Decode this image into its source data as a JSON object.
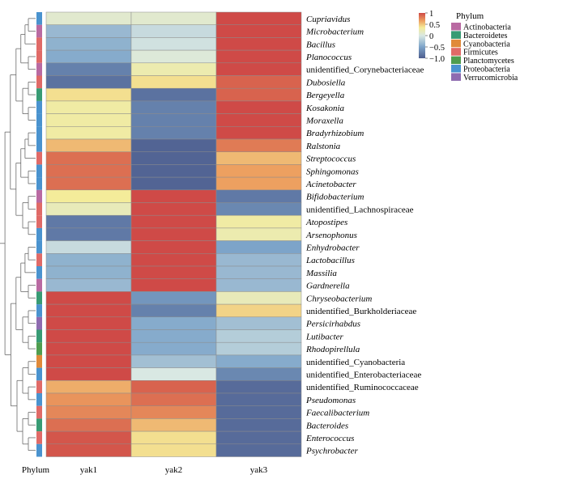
{
  "chart_data": {
    "type": "heatmap",
    "columns": [
      "yak1",
      "yak2",
      "yak3"
    ],
    "col_side_label": "Phylum",
    "rows": [
      {
        "taxon": "Cupriavidus",
        "italic": true,
        "phylum": "Proteobacteria",
        "values": [
          0.1,
          0.1,
          1.0
        ]
      },
      {
        "taxon": "Microbacterium",
        "italic": true,
        "phylum": "Actinobacteria",
        "values": [
          -0.35,
          -0.1,
          1.0
        ]
      },
      {
        "taxon": "Bacillus",
        "italic": true,
        "phylum": "Firmicutes",
        "values": [
          -0.4,
          -0.05,
          1.0
        ]
      },
      {
        "taxon": "Planococcus",
        "italic": true,
        "phylum": "Firmicutes",
        "values": [
          -0.45,
          0.05,
          1.0
        ]
      },
      {
        "taxon": "unidentified_Corynebacteriaceae",
        "italic": false,
        "phylum": "Actinobacteria",
        "values": [
          -0.75,
          0.25,
          1.0
        ]
      },
      {
        "taxon": "Dubosiella",
        "italic": true,
        "phylum": "Firmicutes",
        "values": [
          -0.85,
          0.4,
          0.9
        ]
      },
      {
        "taxon": "Bergeyella",
        "italic": true,
        "phylum": "Bacteroidetes",
        "values": [
          0.4,
          -0.85,
          0.9
        ]
      },
      {
        "taxon": "Kosakonia",
        "italic": true,
        "phylum": "Proteobacteria",
        "values": [
          0.3,
          -0.75,
          1.0
        ]
      },
      {
        "taxon": "Moraxella",
        "italic": true,
        "phylum": "Proteobacteria",
        "values": [
          0.3,
          -0.75,
          1.0
        ]
      },
      {
        "taxon": "Bradyrhizobium",
        "italic": true,
        "phylum": "Proteobacteria",
        "values": [
          0.3,
          -0.75,
          1.0
        ]
      },
      {
        "taxon": "Ralstonia",
        "italic": true,
        "phylum": "Proteobacteria",
        "values": [
          0.55,
          -0.95,
          0.8
        ]
      },
      {
        "taxon": "Streptococcus",
        "italic": true,
        "phylum": "Firmicutes",
        "values": [
          0.85,
          -0.95,
          0.55
        ]
      },
      {
        "taxon": "Sphingomonas",
        "italic": true,
        "phylum": "Proteobacteria",
        "values": [
          0.85,
          -0.95,
          0.65
        ]
      },
      {
        "taxon": "Acinetobacter",
        "italic": true,
        "phylum": "Proteobacteria",
        "values": [
          0.85,
          -0.95,
          0.65
        ]
      },
      {
        "taxon": "Bifidobacterium",
        "italic": true,
        "phylum": "Actinobacteria",
        "values": [
          0.35,
          1.0,
          -0.8
        ]
      },
      {
        "taxon": "unidentified_Lachnospiraceae",
        "italic": false,
        "phylum": "Firmicutes",
        "values": [
          0.2,
          1.0,
          -0.7
        ]
      },
      {
        "taxon": "Atopostipes",
        "italic": true,
        "phylum": "Firmicutes",
        "values": [
          -0.8,
          1.0,
          0.3
        ]
      },
      {
        "taxon": "Arsenophonus",
        "italic": true,
        "phylum": "Proteobacteria",
        "values": [
          -0.8,
          1.0,
          0.25
        ]
      },
      {
        "taxon": "Enhydrobacter",
        "italic": true,
        "phylum": "Proteobacteria",
        "values": [
          -0.1,
          1.0,
          -0.5
        ]
      },
      {
        "taxon": "Lactobacillus",
        "italic": true,
        "phylum": "Firmicutes",
        "values": [
          -0.4,
          1.0,
          -0.35
        ]
      },
      {
        "taxon": "Massilia",
        "italic": true,
        "phylum": "Proteobacteria",
        "values": [
          -0.4,
          1.0,
          -0.35
        ]
      },
      {
        "taxon": "Gardnerella",
        "italic": true,
        "phylum": "Actinobacteria",
        "values": [
          -0.35,
          1.0,
          -0.35
        ]
      },
      {
        "taxon": "Chryseobacterium",
        "italic": true,
        "phylum": "Bacteroidetes",
        "values": [
          1.0,
          -0.6,
          0.2
        ]
      },
      {
        "taxon": "unidentified_Burkholderiaceae",
        "italic": false,
        "phylum": "Proteobacteria",
        "values": [
          1.0,
          -0.75,
          0.45
        ]
      },
      {
        "taxon": "Persicirhabdus",
        "italic": true,
        "phylum": "Verrucomicrobia",
        "values": [
          1.0,
          -0.45,
          -0.3
        ]
      },
      {
        "taxon": "Lutibacter",
        "italic": true,
        "phylum": "Bacteroidetes",
        "values": [
          1.0,
          -0.45,
          -0.2
        ]
      },
      {
        "taxon": "Rhodopirellula",
        "italic": true,
        "phylum": "Planctomycetes",
        "values": [
          1.0,
          -0.45,
          -0.2
        ]
      },
      {
        "taxon": "unidentified_Cyanobacteria",
        "italic": false,
        "phylum": "Cyanobacteria",
        "values": [
          1.0,
          -0.3,
          -0.45
        ]
      },
      {
        "taxon": "unidentified_Enterobacteriaceae",
        "italic": false,
        "phylum": "Proteobacteria",
        "values": [
          1.0,
          0.0,
          -0.7
        ]
      },
      {
        "taxon": "unidentified_Ruminococcaceae",
        "italic": false,
        "phylum": "Firmicutes",
        "values": [
          0.6,
          0.9,
          -0.9
        ]
      },
      {
        "taxon": "Pseudomonas",
        "italic": true,
        "phylum": "Proteobacteria",
        "values": [
          0.7,
          0.85,
          -0.9
        ]
      },
      {
        "taxon": "Faecalibacterium",
        "italic": true,
        "phylum": "Firmicutes",
        "values": [
          0.75,
          0.75,
          -0.9
        ]
      },
      {
        "taxon": "Bacteroides",
        "italic": true,
        "phylum": "Bacteroidetes",
        "values": [
          0.85,
          0.55,
          -0.9
        ]
      },
      {
        "taxon": "Enterococcus",
        "italic": true,
        "phylum": "Firmicutes",
        "values": [
          0.95,
          0.4,
          -0.9
        ]
      },
      {
        "taxon": "Psychrobacter",
        "italic": true,
        "phylum": "Proteobacteria",
        "values": [
          0.95,
          0.4,
          -0.9
        ]
      }
    ],
    "color_scale": {
      "range": [
        -1.0,
        1.0
      ],
      "ticks": [
        "1",
        "0.5",
        "0",
        "−0.5",
        "−1.0"
      ],
      "tick_values": [
        1,
        0.5,
        0,
        -0.5,
        -1.0
      ],
      "stops": [
        {
          "value": -1.0,
          "color": "#4d5d8e"
        },
        {
          "value": -0.5,
          "color": "#7da4c9"
        },
        {
          "value": 0.0,
          "color": "#d9e8e3"
        },
        {
          "value": 0.35,
          "color": "#f4ec9a"
        },
        {
          "value": 0.65,
          "color": "#eda060"
        },
        {
          "value": 1.0,
          "color": "#cf4a47"
        }
      ]
    },
    "legend": {
      "title": "Phylum",
      "entries": [
        {
          "name": "Actinobacteria",
          "color": "#b96aa2"
        },
        {
          "name": "Bacteroidetes",
          "color": "#389b74"
        },
        {
          "name": "Cyanobacteria",
          "color": "#e08a3a"
        },
        {
          "name": "Firmicutes",
          "color": "#e06a67"
        },
        {
          "name": "Planctomycetes",
          "color": "#4f9d4f"
        },
        {
          "name": "Proteobacteria",
          "color": "#4a93cf"
        },
        {
          "name": "Verrucomicrobia",
          "color": "#8e6bb0"
        }
      ]
    }
  }
}
